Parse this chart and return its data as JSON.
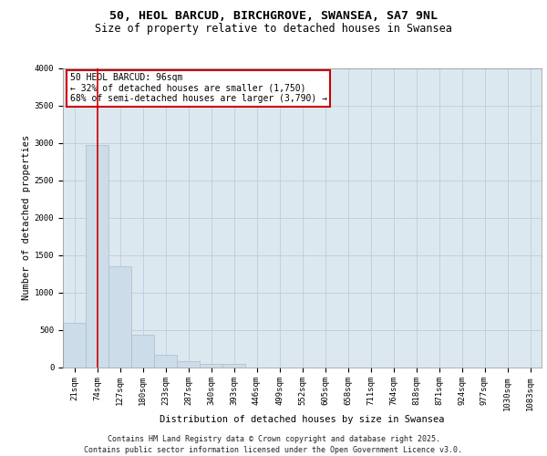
{
  "title_line1": "50, HEOL BARCUD, BIRCHGROVE, SWANSEA, SA7 9NL",
  "title_line2": "Size of property relative to detached houses in Swansea",
  "xlabel": "Distribution of detached houses by size in Swansea",
  "ylabel": "Number of detached properties",
  "categories": [
    "21sqm",
    "74sqm",
    "127sqm",
    "180sqm",
    "233sqm",
    "287sqm",
    "340sqm",
    "393sqm",
    "446sqm",
    "499sqm",
    "552sqm",
    "605sqm",
    "658sqm",
    "711sqm",
    "764sqm",
    "818sqm",
    "871sqm",
    "924sqm",
    "977sqm",
    "1030sqm",
    "1083sqm"
  ],
  "values": [
    590,
    2970,
    1350,
    430,
    160,
    75,
    45,
    45,
    0,
    0,
    0,
    0,
    0,
    0,
    0,
    0,
    0,
    0,
    0,
    0,
    0
  ],
  "bar_color": "#ccdce8",
  "bar_edge_color": "#aabccc",
  "grid_color": "#b8c8d8",
  "background_color": "#dce8f0",
  "annotation_text": "50 HEOL BARCUD: 96sqm\n← 32% of detached houses are smaller (1,750)\n68% of semi-detached houses are larger (3,790) →",
  "annotation_box_color": "#ffffff",
  "annotation_box_edge_color": "#cc0000",
  "red_line_x": 1,
  "ylim": [
    0,
    4000
  ],
  "yticks": [
    0,
    500,
    1000,
    1500,
    2000,
    2500,
    3000,
    3500,
    4000
  ],
  "footer_line1": "Contains HM Land Registry data © Crown copyright and database right 2025.",
  "footer_line2": "Contains public sector information licensed under the Open Government Licence v3.0.",
  "title_fontsize": 9.5,
  "subtitle_fontsize": 8.5,
  "axis_label_fontsize": 7.5,
  "tick_fontsize": 6.5,
  "footer_fontsize": 6,
  "annot_fontsize": 7
}
